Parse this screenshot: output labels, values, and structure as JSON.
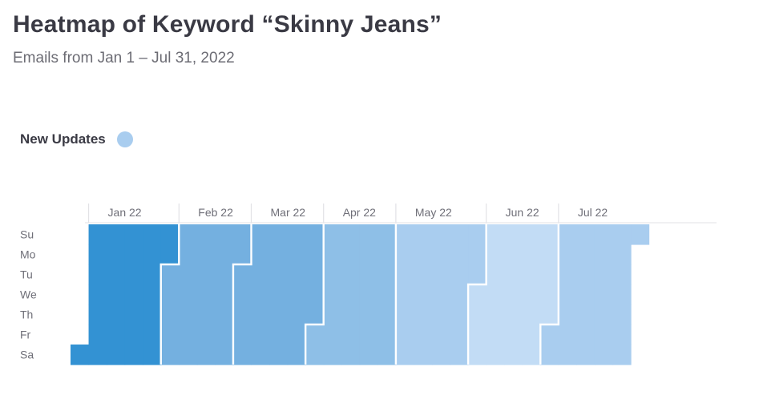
{
  "title": "Heatmap of Keyword “Skinny Jeans”",
  "subtitle": "Emails from Jan 1 – Jul 31, 2022",
  "legend": {
    "label": "New Updates",
    "color": "#a9cdef"
  },
  "chart_data": {
    "type": "heatmap",
    "title": "Heatmap of Keyword “Skinny Jeans”",
    "subtitle": "Emails from Jan 1 – Jul 31, 2022",
    "x_unit": "week",
    "y_categories": [
      "Su",
      "Mo",
      "Tu",
      "We",
      "Th",
      "Fr",
      "Sa"
    ],
    "date_range": [
      "2022-01-01",
      "2022-07-31"
    ],
    "series_name": "New Updates",
    "months": [
      {
        "label": "Jan 22",
        "start_date": "2022-01-01",
        "end_date": "2022-01-31",
        "color": "#3392d3"
      },
      {
        "label": "Feb 22",
        "start_date": "2022-02-01",
        "end_date": "2022-02-28",
        "color": "#74b0e0"
      },
      {
        "label": "Mar 22",
        "start_date": "2022-03-01",
        "end_date": "2022-03-31",
        "color": "#74b0e0"
      },
      {
        "label": "Apr 22",
        "start_date": "2022-04-01",
        "end_date": "2022-04-30",
        "color": "#8ebfe7"
      },
      {
        "label": "May 22",
        "start_date": "2022-05-01",
        "end_date": "2022-05-31",
        "color": "#a9cdef"
      },
      {
        "label": "Jun 22",
        "start_date": "2022-06-01",
        "end_date": "2022-06-30",
        "color": "#c2dcf5"
      },
      {
        "label": "Jul 22",
        "start_date": "2022-07-01",
        "end_date": "2022-07-31",
        "color": "#a9cdef"
      }
    ]
  }
}
